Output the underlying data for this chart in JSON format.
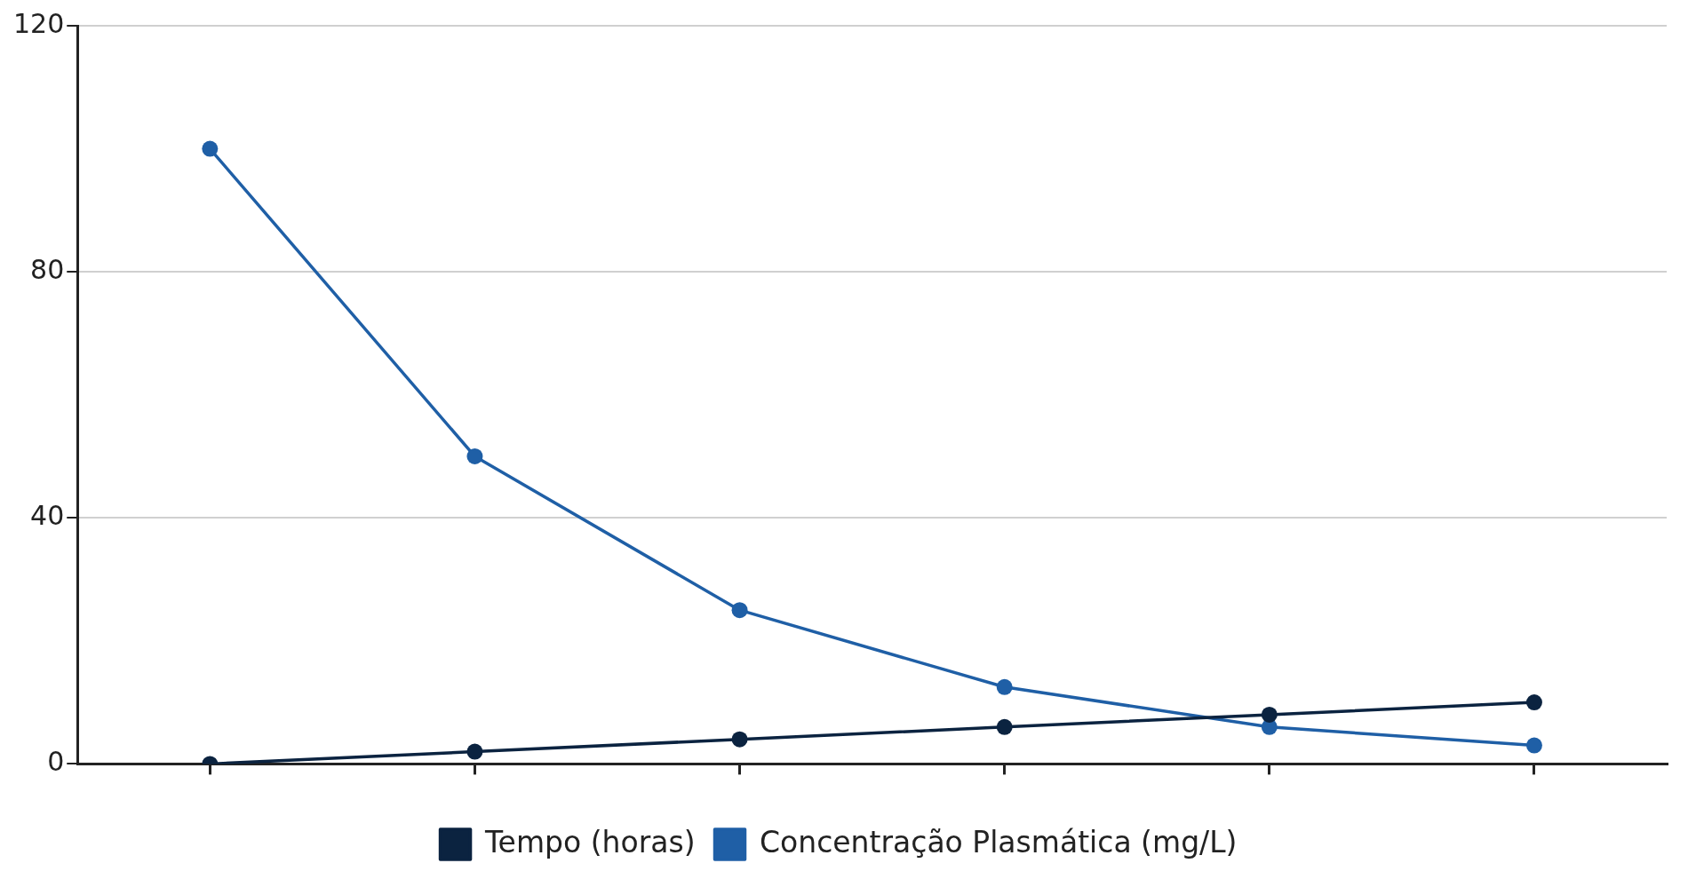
{
  "chart_data": {
    "type": "line",
    "categories": [
      null,
      null,
      null,
      null,
      null,
      null
    ],
    "series": [
      {
        "name": "Tempo (horas)",
        "color": "#0b2340",
        "values": [
          0,
          2,
          4,
          6,
          8,
          10
        ]
      },
      {
        "name": "Concentração Plasmática (mg/L)",
        "color": "#1f5fa6",
        "values": [
          100,
          50,
          25,
          12.5,
          6,
          3
        ]
      }
    ],
    "ylim": [
      0,
      120
    ],
    "yticks": [
      0,
      40,
      80,
      120
    ],
    "grid": "y",
    "legend": "bottom",
    "marker": "circle",
    "line_style": "solid"
  }
}
